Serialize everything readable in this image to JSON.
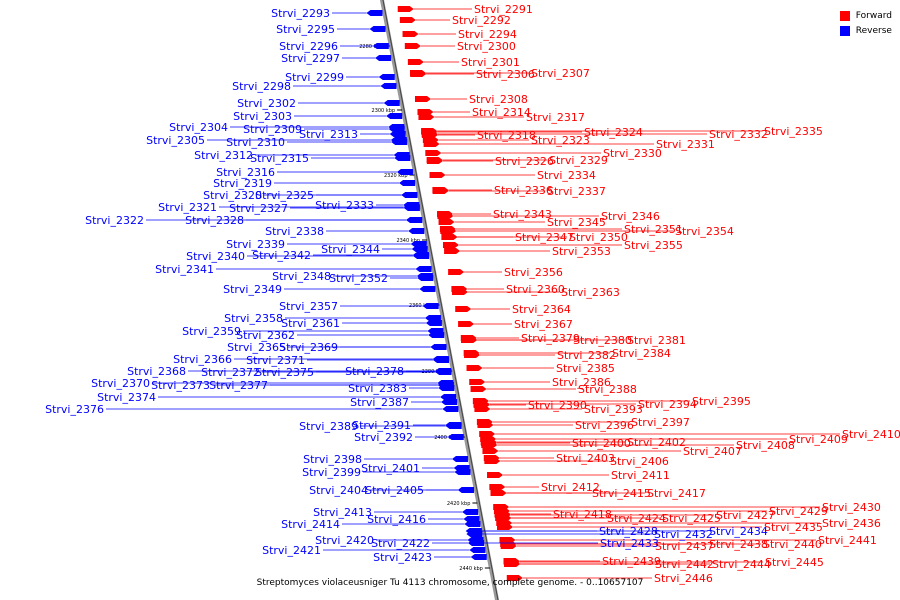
{
  "colors": {
    "forward": "#ff0000",
    "reverse": "#0000ff",
    "backbone": "#888888"
  },
  "legend": {
    "forward_label": "Forward",
    "reverse_label": "Reverse"
  },
  "caption": "Streptomyces violaceusniger Tu 4113 chromosome, complete genome. - 0..10657107",
  "scale_ticks": [
    "2280 kbp",
    "2300 kbp",
    "2320 kbp",
    "2340 kbp",
    "2360 kbp",
    "2380 kbp",
    "2400 kbp",
    "2420 kbp",
    "2440 kbp"
  ],
  "forward_genes": [
    "Strvi_2291",
    "Strvi_2292",
    "Strvi_2294",
    "Strvi_2300",
    "Strvi_2301",
    "Strvi_2306",
    "Strvi_2307",
    "Strvi_2308",
    "Strvi_2314",
    "Strvi_2317",
    "Strvi_2318",
    "Strvi_2323",
    "Strvi_2324",
    "Strvi_2330",
    "Strvi_2331",
    "Strvi_2332",
    "Strvi_2335",
    "Strvi_2326",
    "Strvi_2329",
    "Strvi_2334",
    "Strvi_2336",
    "Strvi_2337",
    "Strvi_2343",
    "Strvi_2345",
    "Strvi_2346",
    "Strvi_2351",
    "Strvi_2354",
    "Strvi_2347",
    "Strvi_2350",
    "Strvi_2353",
    "Strvi_2355",
    "Strvi_2356",
    "Strvi_2360",
    "Strvi_2363",
    "Strvi_2364",
    "Strvi_2367",
    "Strvi_2379",
    "Strvi_2380",
    "Strvi_2381",
    "Strvi_2382",
    "Strvi_2384",
    "Strvi_2385",
    "Strvi_2386",
    "Strvi_2388",
    "Strvi_2390",
    "Strvi_2393",
    "Strvi_2394",
    "Strvi_2395",
    "Strvi_2396",
    "Strvi_2397",
    "Strvi_2400",
    "Strvi_2402",
    "Strvi_2407",
    "Strvi_2408",
    "Strvi_2409",
    "Strvi_2410",
    "Strvi_2403",
    "Strvi_2406",
    "Strvi_2411",
    "Strvi_2412",
    "Strvi_2415",
    "Strvi_2417",
    "Strvi_2418",
    "Strvi_2424",
    "Strvi_2425",
    "Strvi_2427",
    "Strvi_2429",
    "Strvi_2430",
    "Strvi_2435",
    "Strvi_2436",
    "Strvi_2437",
    "Strvi_2438",
    "Strvi_2440",
    "Strvi_2441",
    "Strvi_2439",
    "Strvi_2442",
    "Strvi_2444",
    "Strvi_2445",
    "Strvi_2446"
  ],
  "reverse_genes": [
    "Strvi_2293",
    "Strvi_2295",
    "Strvi_2296",
    "Strvi_2297",
    "Strvi_2299",
    "Strvi_2298",
    "Strvi_2302",
    "Strvi_2303",
    "Strvi_2304",
    "Strvi_2309",
    "Strvi_2313",
    "Strvi_2305",
    "Strvi_2310",
    "Strvi_2312",
    "Strvi_2315",
    "Strvi_2316",
    "Strvi_2319",
    "Strvi_2320",
    "Strvi_2325",
    "Strvi_2321",
    "Strvi_2327",
    "Strvi_2333",
    "Strvi_2322",
    "Strvi_2328",
    "Strvi_2338",
    "Strvi_2339",
    "Strvi_2344",
    "Strvi_2340",
    "Strvi_2342",
    "Strvi_2341",
    "Strvi_2348",
    "Strvi_2352",
    "Strvi_2349",
    "Strvi_2357",
    "Strvi_2358",
    "Strvi_2361",
    "Strvi_2359",
    "Strvi_2362",
    "Strvi_2365",
    "Strvi_2369",
    "Strvi_2366",
    "Strvi_2371",
    "Strvi_2368",
    "Strvi_2372",
    "Strvi_2375",
    "Strvi_2378",
    "Strvi_2370",
    "Strvi_2373",
    "Strvi_2377",
    "Strvi_2383",
    "Strvi_2374",
    "Strvi_2387",
    "Strvi_2376",
    "Strvi_2389",
    "Strvi_2391",
    "Strvi_2392",
    "Strvi_2398",
    "Strvi_2399",
    "Strvi_2401",
    "Strvi_2404",
    "Strvi_2405",
    "Strvi_2413",
    "Strvi_2416",
    "Strvi_2414",
    "Strvi_2420",
    "Strvi_2422",
    "Strvi_2421",
    "Strvi_2423",
    "Strvi_2428",
    "Strvi_2432",
    "Strvi_2434",
    "Strvi_2433"
  ]
}
